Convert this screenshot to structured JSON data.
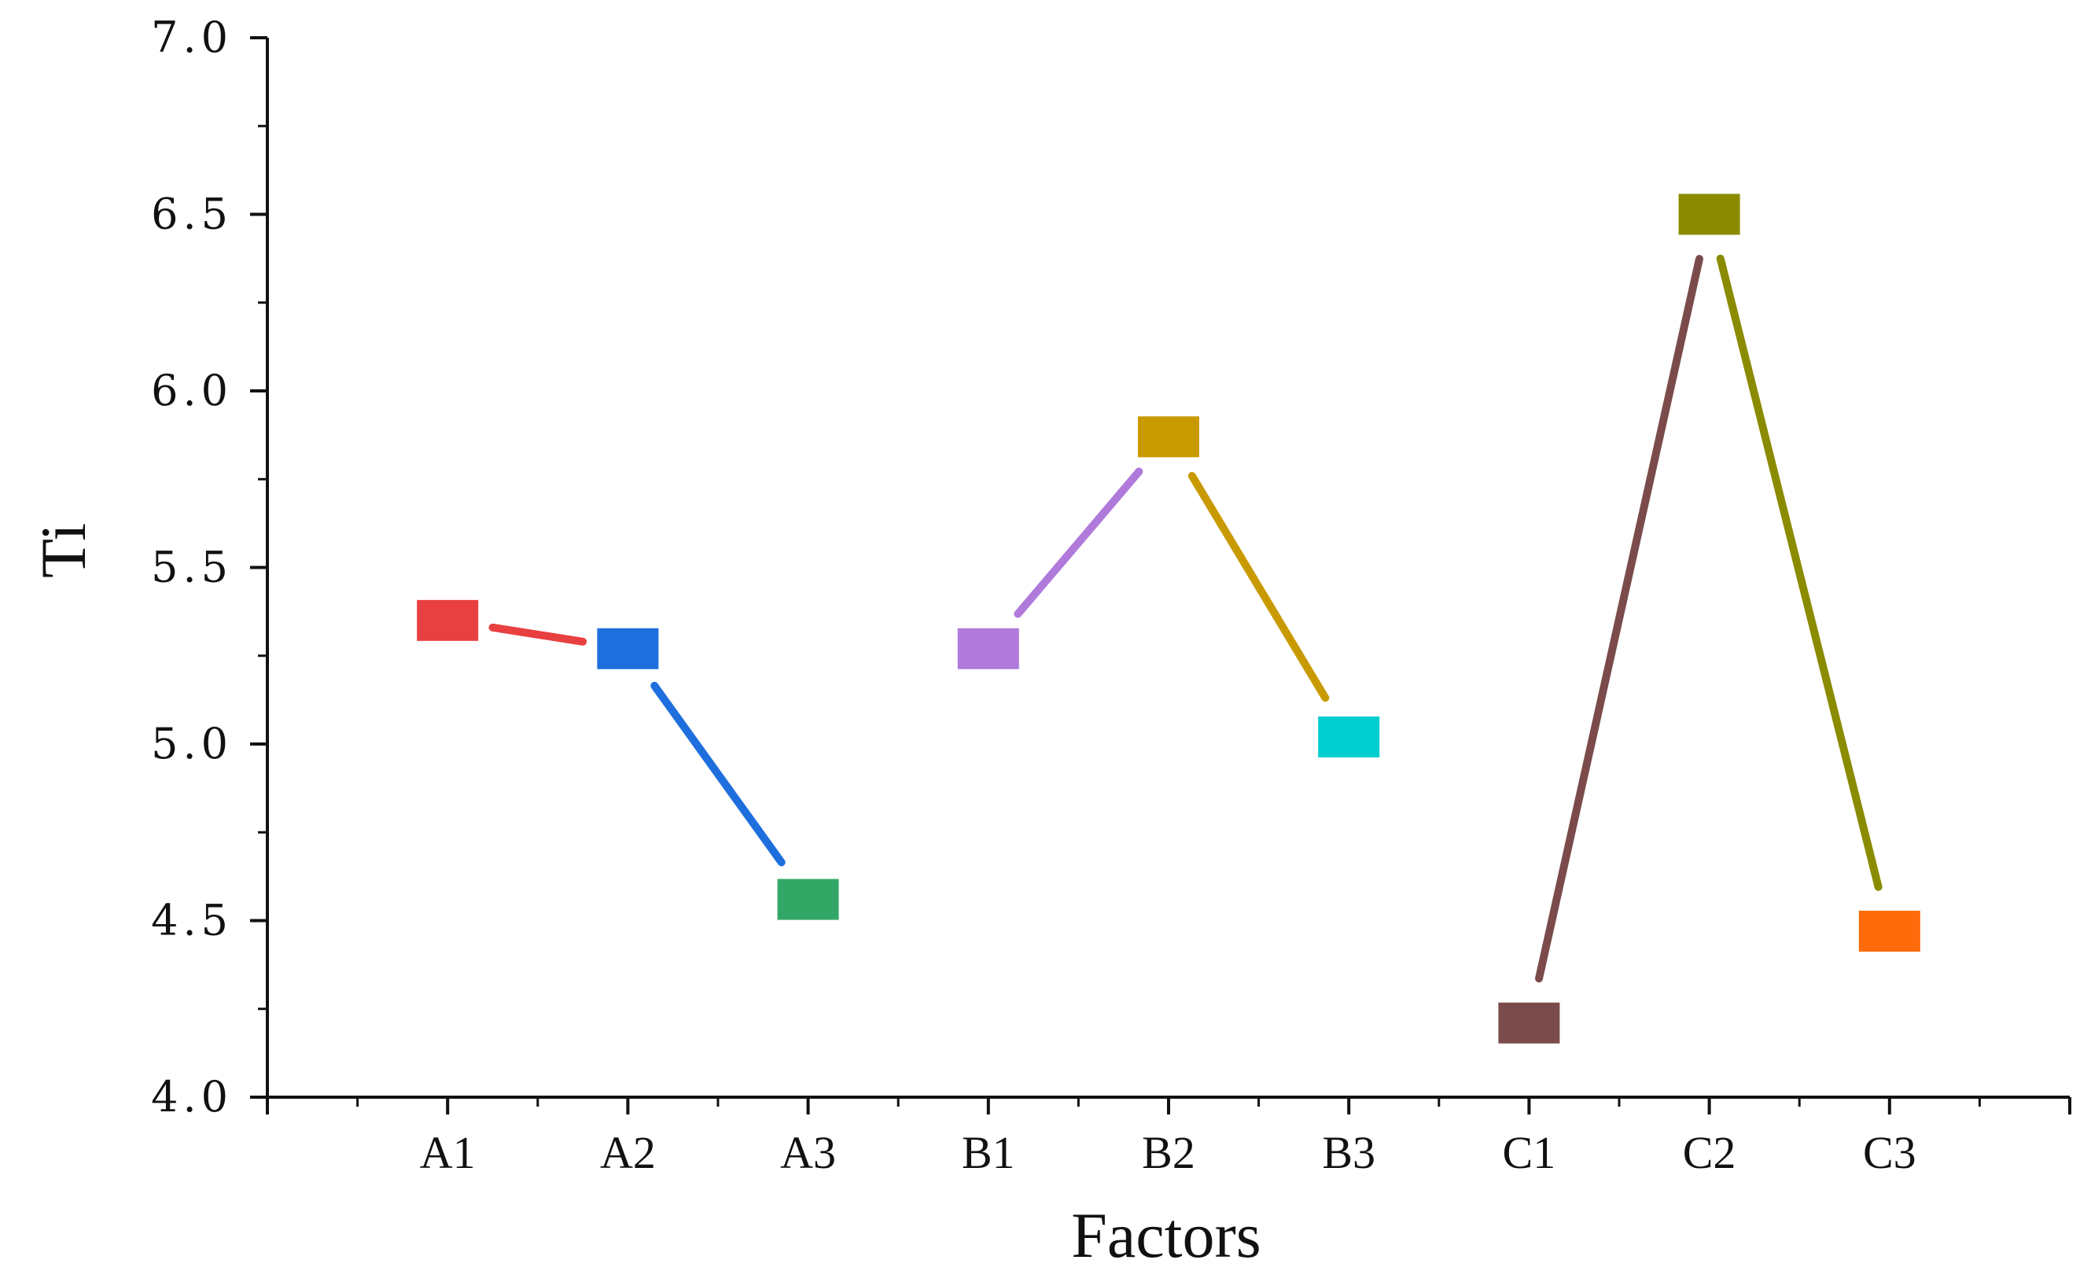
{
  "chart_data": {
    "type": "line",
    "title": "",
    "xlabel": "Factors",
    "ylabel": "Ti",
    "categories": [
      "A1",
      "A2",
      "A3",
      "B1",
      "B2",
      "B3",
      "C1",
      "C2",
      "C3"
    ],
    "ylim": [
      4.0,
      7.0
    ],
    "yticks": [
      "4.0",
      "4.5",
      "5.0",
      "5.5",
      "6.0",
      "6.5",
      "7.0"
    ],
    "grid": false,
    "legend": "none",
    "points": [
      {
        "label": "A1",
        "value": 5.35,
        "color": "#E84040"
      },
      {
        "label": "A2",
        "value": 5.27,
        "color": "#1E6FDD"
      },
      {
        "label": "A3",
        "value": 4.56,
        "color": "#33A866"
      },
      {
        "label": "B1",
        "value": 5.27,
        "color": "#B07ADB"
      },
      {
        "label": "B2",
        "value": 5.87,
        "color": "#C99A00"
      },
      {
        "label": "B3",
        "value": 5.02,
        "color": "#00CDCD"
      },
      {
        "label": "C1",
        "value": 4.21,
        "color": "#7B4B4B"
      },
      {
        "label": "C2",
        "value": 6.5,
        "color": "#8B8B00"
      },
      {
        "label": "C3",
        "value": 4.47,
        "color": "#FF6A0A"
      }
    ],
    "segments": [
      {
        "from": "A1",
        "to": "A2",
        "color": "#E84040"
      },
      {
        "from": "A2",
        "to": "A3",
        "color": "#1E6FDD"
      },
      {
        "from": "B1",
        "to": "B2",
        "color": "#B07ADB"
      },
      {
        "from": "B2",
        "to": "B3",
        "color": "#C99A00"
      },
      {
        "from": "C1",
        "to": "C2",
        "color": "#7B4B4B"
      },
      {
        "from": "C2",
        "to": "C3",
        "color": "#8B8B00"
      }
    ]
  }
}
